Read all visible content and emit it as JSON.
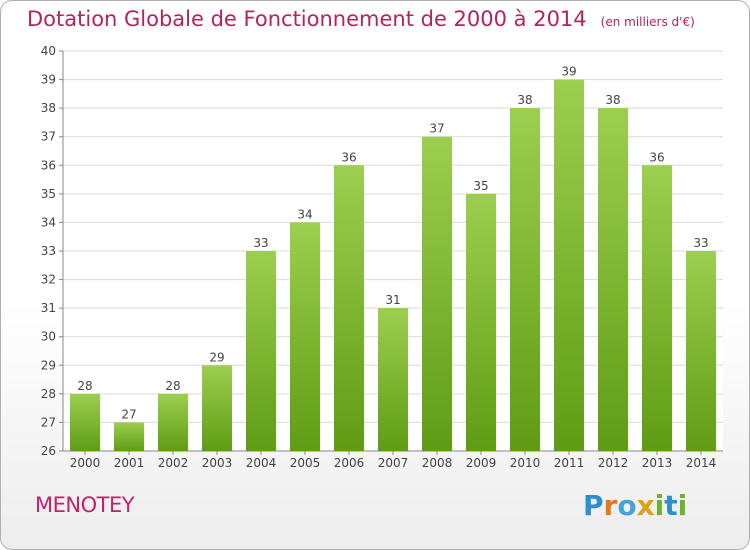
{
  "header": {
    "title": "Dotation Globale de Fonctionnement de 2000 à 2014",
    "unit": "(en milliers d'€)"
  },
  "footer": {
    "commune": "MENOTEY",
    "logo": "Proxiti"
  },
  "colors": {
    "bar_top": "#9ccf4f",
    "bar_bottom": "#5f9c14",
    "title": "#b3245f",
    "grid": "#d9d9d9"
  },
  "chart_data": {
    "type": "bar",
    "title": "Dotation Globale de Fonctionnement de 2000 à 2014",
    "subtitle": "(en milliers d'€)",
    "xlabel": "",
    "ylabel": "",
    "categories": [
      "2000",
      "2001",
      "2002",
      "2003",
      "2004",
      "2005",
      "2006",
      "2007",
      "2008",
      "2009",
      "2010",
      "2011",
      "2012",
      "2013",
      "2014"
    ],
    "values": [
      28,
      27,
      28,
      29,
      33,
      34,
      36,
      31,
      37,
      35,
      38,
      39,
      38,
      36,
      33
    ],
    "ylim": [
      26,
      40
    ],
    "yticks": [
      26,
      27,
      28,
      29,
      30,
      31,
      32,
      33,
      34,
      35,
      36,
      37,
      38,
      39,
      40
    ],
    "grid": true,
    "legend": "none"
  }
}
